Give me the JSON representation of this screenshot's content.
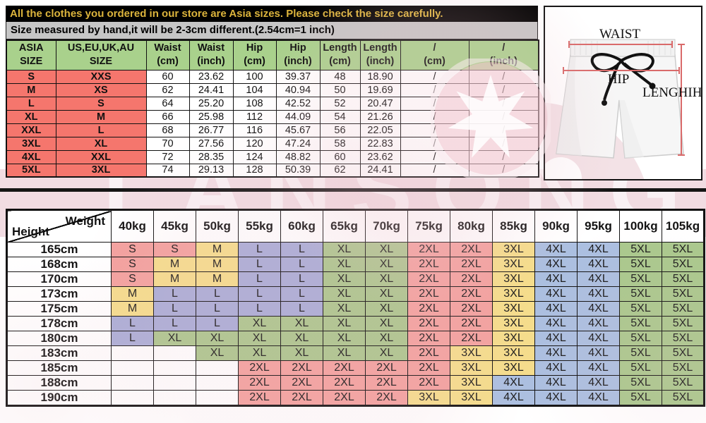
{
  "banner": {
    "line1": "All the clothes you ordered in our store are Asia sizes. Please check the size carefully.",
    "line2": "Size measured by hand,it will be 2-3cm different.(2.54cm=1 inch)"
  },
  "watermark": {
    "text": "LANSONG"
  },
  "size_table": {
    "headers": [
      {
        "l1": "ASIA SIZE",
        "l2": ""
      },
      {
        "l1": "US,EU,UK,AU SIZE",
        "l2": ""
      },
      {
        "l1": "Waist",
        "l2": "(cm)"
      },
      {
        "l1": "Waist",
        "l2": "(inch)"
      },
      {
        "l1": "Hip",
        "l2": "(cm)"
      },
      {
        "l1": "Hip",
        "l2": "(inch)"
      },
      {
        "l1": "Length",
        "l2": "(cm)"
      },
      {
        "l1": "Length",
        "l2": "(inch)"
      },
      {
        "l1": "/",
        "l2": "(cm)"
      },
      {
        "l1": "/",
        "l2": "(inch)"
      }
    ],
    "rows": [
      [
        "S",
        "XXS",
        "60",
        "23.62",
        "100",
        "39.37",
        "48",
        "18.90",
        "/",
        "/"
      ],
      [
        "M",
        "XS",
        "62",
        "24.41",
        "104",
        "40.94",
        "50",
        "19.69",
        "/",
        "/"
      ],
      [
        "L",
        "S",
        "64",
        "25.20",
        "108",
        "42.52",
        "52",
        "20.47",
        "/",
        "/"
      ],
      [
        "XL",
        "M",
        "66",
        "25.98",
        "112",
        "44.09",
        "54",
        "21.26",
        "/",
        "/"
      ],
      [
        "XXL",
        "L",
        "68",
        "26.77",
        "116",
        "45.67",
        "56",
        "22.05",
        "/",
        "/"
      ],
      [
        "3XL",
        "XL",
        "70",
        "27.56",
        "120",
        "47.24",
        "58",
        "22.83",
        "/",
        "/"
      ],
      [
        "4XL",
        "XXL",
        "72",
        "28.35",
        "124",
        "48.82",
        "60",
        "23.62",
        "/",
        "/"
      ],
      [
        "5XL",
        "3XL",
        "74",
        "29.13",
        "128",
        "50.39",
        "62",
        "24.41",
        "/",
        "/"
      ]
    ]
  },
  "diagram": {
    "waist_label": "WAIST",
    "hip_label": "HIP",
    "length_label": "LENGHIH"
  },
  "fit_table": {
    "corner": {
      "top_right": "Weight",
      "bottom_left": "Height"
    },
    "weight_headers": [
      "40kg",
      "45kg",
      "50kg",
      "55kg",
      "60kg",
      "65kg",
      "70kg",
      "75kg",
      "80kg",
      "85kg",
      "90kg",
      "95kg",
      "100kg",
      "105kg"
    ],
    "rows": [
      {
        "height": "165cm",
        "sizes": [
          "S",
          "S",
          "M",
          "L",
          "L",
          "XL",
          "XL",
          "2XL",
          "2XL",
          "3XL",
          "4XL",
          "4XL",
          "5XL",
          "5XL"
        ]
      },
      {
        "height": "168cm",
        "sizes": [
          "S",
          "M",
          "M",
          "L",
          "L",
          "XL",
          "XL",
          "2XL",
          "2XL",
          "3XL",
          "4XL",
          "4XL",
          "5XL",
          "5XL"
        ]
      },
      {
        "height": "170cm",
        "sizes": [
          "S",
          "M",
          "M",
          "L",
          "L",
          "XL",
          "XL",
          "2XL",
          "2XL",
          "3XL",
          "4XL",
          "4XL",
          "5XL",
          "5XL"
        ]
      },
      {
        "height": "173cm",
        "sizes": [
          "M",
          "L",
          "L",
          "L",
          "L",
          "XL",
          "XL",
          "2XL",
          "2XL",
          "3XL",
          "4XL",
          "4XL",
          "5XL",
          "5XL"
        ]
      },
      {
        "height": "175cm",
        "sizes": [
          "M",
          "L",
          "L",
          "L",
          "L",
          "XL",
          "XL",
          "2XL",
          "2XL",
          "3XL",
          "4XL",
          "4XL",
          "5XL",
          "5XL"
        ]
      },
      {
        "height": "178cm",
        "sizes": [
          "L",
          "L",
          "L",
          "XL",
          "XL",
          "XL",
          "XL",
          "2XL",
          "2XL",
          "3XL",
          "4XL",
          "4XL",
          "5XL",
          "5XL"
        ]
      },
      {
        "height": "180cm",
        "sizes": [
          "L",
          "XL",
          "XL",
          "XL",
          "XL",
          "XL",
          "XL",
          "2XL",
          "2XL",
          "3XL",
          "4XL",
          "4XL",
          "5XL",
          "5XL"
        ]
      },
      {
        "height": "183cm",
        "sizes": [
          "",
          "",
          "XL",
          "XL",
          "XL",
          "XL",
          "XL",
          "2XL",
          "3XL",
          "3XL",
          "4XL",
          "4XL",
          "5XL",
          "5XL"
        ]
      },
      {
        "height": "185cm",
        "sizes": [
          "",
          "",
          "",
          "2XL",
          "2XL",
          "2XL",
          "2XL",
          "2XL",
          "3XL",
          "3XL",
          "4XL",
          "4XL",
          "5XL",
          "5XL"
        ]
      },
      {
        "height": "188cm",
        "sizes": [
          "",
          "",
          "",
          "2XL",
          "2XL",
          "2XL",
          "2XL",
          "2XL",
          "3XL",
          "4XL",
          "4XL",
          "4XL",
          "5XL",
          "5XL"
        ]
      },
      {
        "height": "190cm",
        "sizes": [
          "",
          "",
          "",
          "2XL",
          "2XL",
          "2XL",
          "2XL",
          "3XL",
          "3XL",
          "4XL",
          "4XL",
          "4XL",
          "5XL",
          "5XL"
        ]
      }
    ]
  },
  "colors": {
    "banner_bg": "#000000",
    "banner_text": "#dcb43c",
    "note_bg": "#c6c6c6",
    "header_green": "#a9d18c",
    "label_salmon": "#f5766d",
    "measure_line_red": "#d96a6a",
    "watermark_pink": "#f1dce2",
    "size_S": "#f3a19e",
    "size_M": "#f5dd8b",
    "size_L": "#a9add7",
    "size_XL": "#abc68d",
    "size_2XL": "#f3a19e",
    "size_3XL": "#f5dd8b",
    "size_4XL": "#abbfe0",
    "size_5XL": "#a9c88c"
  }
}
